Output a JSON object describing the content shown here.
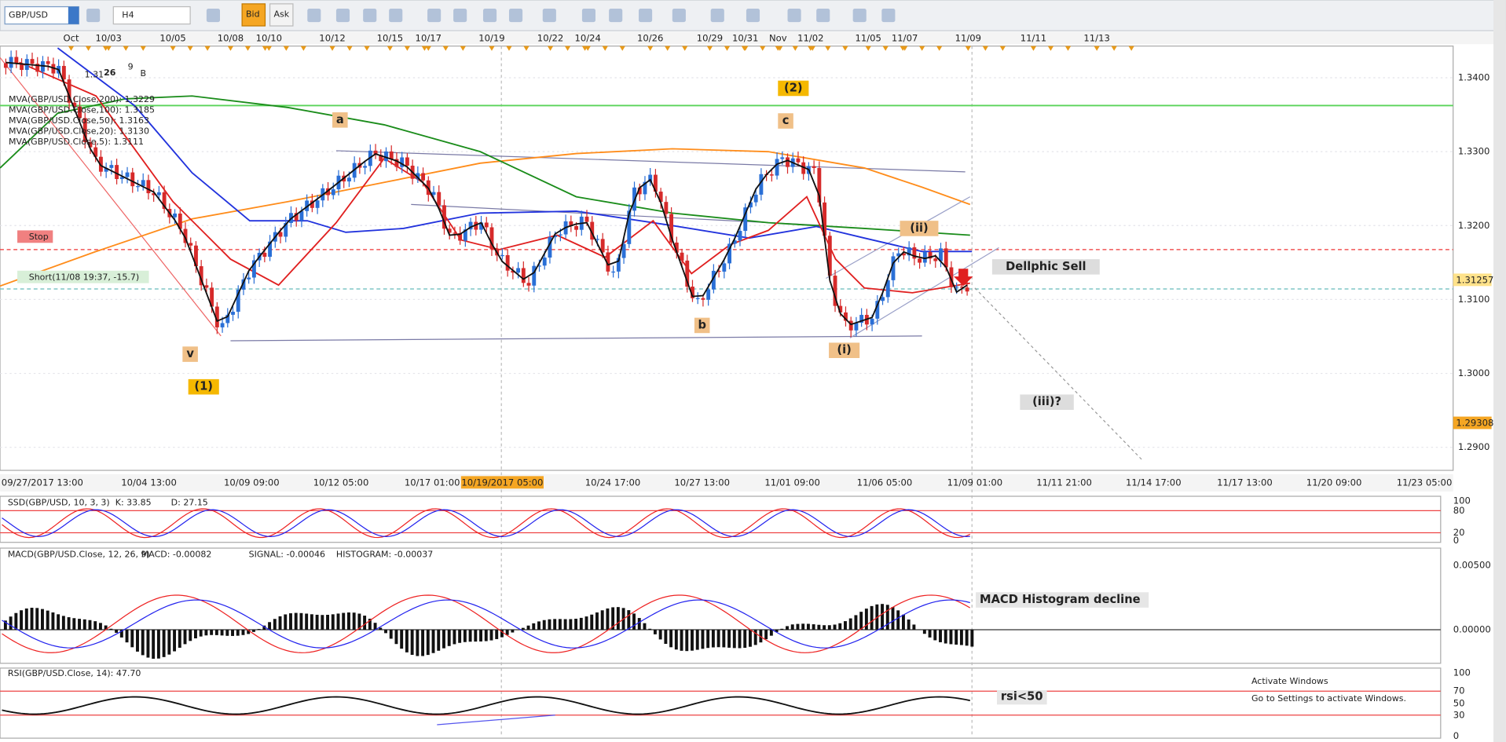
{
  "toolbar": {
    "symbol": "GBP/USD",
    "timeframe": "H4",
    "bid": "Bid",
    "ask": "Ask"
  },
  "top_dates": [
    "Oct",
    "10/03",
    "10/05",
    "10/08",
    "10/10",
    "10/12",
    "10/15",
    "10/17",
    "10/19",
    "10/22",
    "10/24",
    "10/26",
    "10/29",
    "10/31",
    "Nov",
    "11/02",
    "11/05",
    "11/07",
    "11/09",
    "11/11",
    "11/13"
  ],
  "price_axis": [
    "1.3400",
    "1.3300",
    "1.3200",
    "1.3100",
    "1.3000",
    "1.2900"
  ],
  "price_tags": [
    "1.31257",
    "1.29308"
  ],
  "quote": {
    "big": "1.31",
    "pips": "26",
    "fraction": "9",
    "side": "B"
  },
  "legend": [
    "MVA(GBP/USD.Close,200): 1.3229",
    "MVA(GBP/USD.Close,100): 1.3185",
    "MVA(GBP/USD.Close,50): 1.3163",
    "MVA(GBP/USD.Close,20): 1.3130",
    "MVA(GBP/USD.Close,5): 1.3111"
  ],
  "annotations": [
    "(2)",
    "a",
    "c",
    "(ii)",
    "Dellphic Sell",
    "v",
    "(1)",
    "b",
    "(i)",
    "(iii)?"
  ],
  "orders": {
    "stop": "Stop",
    "short": "Short(11/08 19:37, -15.7)"
  },
  "time_axis": [
    "09/27/2017 13:00",
    "10/04 13:00",
    "10/09 09:00",
    "10/12 05:00",
    "10/17 01:00",
    "10/24 17:00",
    "10/27 13:00",
    "11/01 09:00",
    "11/06 05:00",
    "11/09 01:00",
    "11/11 21:00",
    "11/14 17:00",
    "11/17 13:00",
    "11/20 09:00",
    "11/23 05:00"
  ],
  "highlight_time": "10/19/2017 05:00",
  "stochastic": {
    "title": "SSD(GBP/USD, 10, 3, 3)",
    "k": "K: 33.85",
    "d": "D: 27.15",
    "axis": [
      "100",
      "80",
      "20",
      "0"
    ]
  },
  "macd": {
    "title": "MACD(GBP/USD.Close, 12, 26, 9)",
    "macd": "MACD: -0.00082",
    "signal": "SIGNAL: -0.00046",
    "histogram": "HISTOGRAM: -0.00037",
    "axis": [
      "0.00500",
      "0.00000"
    ],
    "note": "MACD Histogram decline"
  },
  "rsi": {
    "title": "RSI(GBP/USD.Close, 14): 47.70",
    "axis": [
      "100",
      "70",
      "50",
      "30",
      "0"
    ],
    "note": "rsi<50"
  },
  "watermark": {
    "title": "Activate Windows",
    "subtitle": "Go to Settings to activate Windows."
  }
}
